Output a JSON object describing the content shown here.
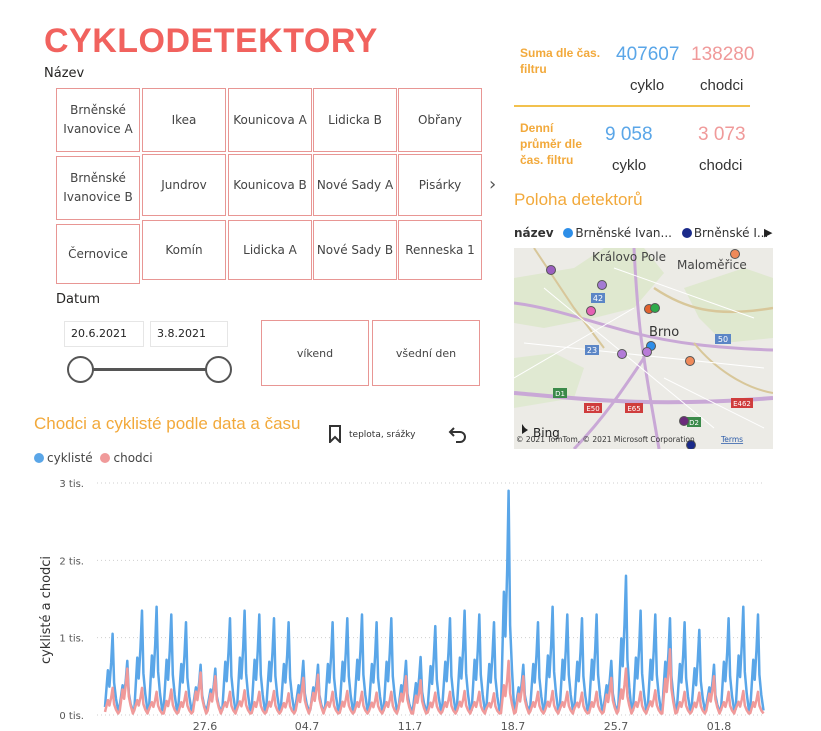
{
  "title": "CYKLODETEKTORY",
  "slicer": {
    "label": "Název",
    "items": [
      "Brněnské Ivanovice A",
      "Ikea",
      "Kounicova A",
      "Lidicka B",
      "Obřany",
      "Brněnské Ivanovice B",
      "Jundrov",
      "Kounicova B",
      "Nové Sady A",
      "Pisárky",
      "Černovice",
      "Komín",
      "Lidicka A",
      "Nové Sady B",
      "Renneska 1"
    ]
  },
  "date_filter": {
    "label": "Datum",
    "start": "20.6.2021",
    "end": "3.8.2021"
  },
  "day_type": {
    "weekend": "víkend",
    "weekday": "všední den"
  },
  "kpi": {
    "sum_label": "Suma dle čas. filtru",
    "sum_cyklo": "407607",
    "sum_chodci": "138280",
    "avg_label": "Denní průměr dle čas. filtru",
    "avg_cyklo": "9 058",
    "avg_chodci": "3 073",
    "cyklo": "cyklo",
    "chodci": "chodci"
  },
  "map": {
    "title": "Poloha detektorů",
    "legend_title": "název",
    "legend_items": [
      "Brněnské Ivan...",
      "Brněnské I..."
    ],
    "labels": {
      "kralovo_pole": "Královo Pole",
      "malomerice": "Maloměřice",
      "brno": "Brno"
    },
    "road_labels": [
      "42",
      "23",
      "50",
      "D1",
      "E50",
      "E65",
      "E462",
      "D2"
    ],
    "bing": "Bing",
    "copyright": "© 2021 TomTom, © 2021 Microsoft Corporation",
    "terms": "Terms"
  },
  "chart": {
    "title": "Chodci a cyklisté podle data a času",
    "bookmark_label": "teplota, srážky",
    "legend": {
      "cyklo": "cyklisté",
      "chodci": "chodci"
    },
    "ylabel": "cyklisté a chodci",
    "yticks": [
      "0 tis.",
      "1 tis.",
      "2 tis.",
      "3 tis."
    ],
    "xticks": [
      "27.6",
      "04.7",
      "11.7",
      "18.7",
      "25.7",
      "01.8"
    ]
  },
  "colors": {
    "accent": "#f1625e",
    "orange": "#f2a93b",
    "blue": "#5aa6e8",
    "pink": "#f09a9a"
  },
  "chart_data": {
    "type": "line",
    "title": "Chodci a cyklisté podle data a času",
    "ylabel": "cyklisté a chodci",
    "x_range": [
      "2021-06-20",
      "2021-08-03"
    ],
    "ylim": [
      0,
      3000
    ],
    "legend_position": "top-left",
    "series": [
      {
        "name": "cyklisté",
        "daily_peak": [
          1050,
          700,
          1350,
          1400,
          1300,
          1200,
          650,
          600,
          1250,
          1350,
          1300,
          1250,
          1200,
          700,
          650,
          1200,
          1250,
          1300,
          1200,
          1250,
          700,
          750,
          1150,
          1250,
          1350,
          1300,
          1200,
          2900,
          650,
          1200,
          1400,
          1300,
          1250,
          1300,
          700,
          1800,
          1350,
          1300,
          1250,
          1200,
          1100,
          650,
          1250,
          1400,
          1300
        ]
      },
      {
        "name": "chodci",
        "daily_peak": [
          350,
          600,
          350,
          300,
          330,
          300,
          550,
          500,
          300,
          320,
          300,
          310,
          280,
          480,
          520,
          300,
          310,
          300,
          290,
          300,
          500,
          450,
          290,
          300,
          310,
          300,
          280,
          700,
          500,
          300,
          310,
          300,
          290,
          300,
          480,
          600,
          300,
          320,
          850,
          300,
          290,
          500,
          300,
          310,
          300
        ]
      }
    ]
  }
}
